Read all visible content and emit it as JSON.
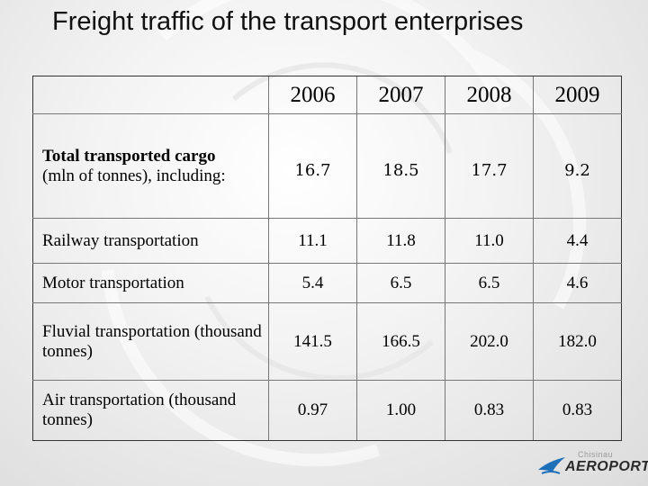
{
  "slide": {
    "title": "Freight traffic of the transport enterprises"
  },
  "table": {
    "years": [
      "2006",
      "2007",
      "2008",
      "2009"
    ],
    "rows": [
      {
        "label_bold": "Total transported cargo",
        "label_rest": "(mln of tonnes), including:",
        "values": [
          "16.7",
          "18.5",
          "17.7",
          "9.2"
        ]
      },
      {
        "label": "Railway transportation",
        "values": [
          "11.1",
          "11.8",
          "11.0",
          "4.4"
        ]
      },
      {
        "label": "Motor transportation",
        "values": [
          "5.4",
          "6.5",
          "6.5",
          "4.6"
        ]
      },
      {
        "label": "Fluvial transportation (thousand tonnes)",
        "values": [
          "141.5",
          "166.5",
          "202.0",
          "182.0"
        ]
      },
      {
        "label": "Air transportation (thousand tonnes)",
        "values": [
          "0.97",
          "1.00",
          "0.83",
          "0.83"
        ]
      }
    ]
  },
  "logo": {
    "city": "Chisinau",
    "name": "AEROPORT",
    "icon": "airplane-icon",
    "accent_color": "#1c6fb8"
  }
}
